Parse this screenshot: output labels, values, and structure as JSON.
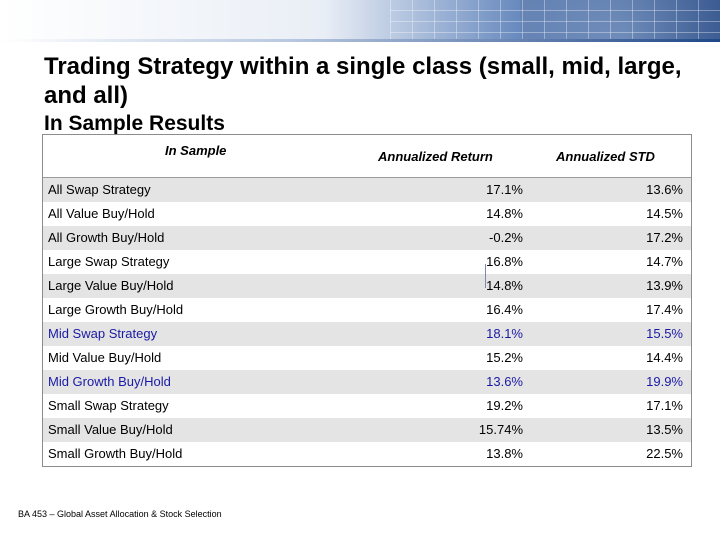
{
  "slide": {
    "title": "Trading Strategy within a single class (small, mid, large, and all)",
    "subtitle": "In Sample Results",
    "footer": "BA 453 – Global Asset Allocation & Stock Selection"
  },
  "table": {
    "headers": [
      "In Sample",
      "Annualized Return",
      "Annualized STD"
    ],
    "rows": [
      {
        "name": "All Swap Strategy",
        "ret": "17.1%",
        "std": "13.6%"
      },
      {
        "name": "All Value Buy/Hold",
        "ret": "14.8%",
        "std": "14.5%"
      },
      {
        "name": "All Growth Buy/Hold",
        "ret": "-0.2%",
        "std": "17.2%"
      },
      {
        "name": "Large Swap Strategy",
        "ret": "16.8%",
        "std": "14.7%"
      },
      {
        "name": "Large Value Buy/Hold",
        "ret": "14.8%",
        "std": "13.9%"
      },
      {
        "name": "Large Growth Buy/Hold",
        "ret": "16.4%",
        "std": "17.4%"
      },
      {
        "name": "Mid Swap Strategy",
        "ret": "18.1%",
        "std": "15.5%"
      },
      {
        "name": "Mid Value Buy/Hold",
        "ret": "15.2%",
        "std": "14.4%"
      },
      {
        "name": "Mid Growth Buy/Hold",
        "ret": "13.6%",
        "std": "19.9%"
      },
      {
        "name": "Small Swap Strategy",
        "ret": "19.2%",
        "std": "17.1%"
      },
      {
        "name": "Small Value Buy/Hold",
        "ret": "15.74%",
        "std": "13.5%"
      },
      {
        "name": "Small Growth Buy/Hold",
        "ret": "13.8%",
        "std": "22.5%"
      }
    ]
  },
  "colors": {
    "row_shade": "#e4e4e4",
    "blue_text": "#1a1aa6",
    "banner_dark": "#1f4788"
  }
}
